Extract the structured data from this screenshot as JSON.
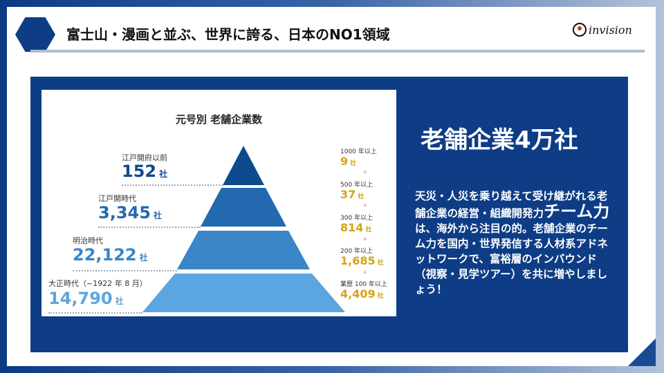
{
  "header": {
    "title": "富士山・漫画と並ぶ、世界に誇る、日本のNO1領域",
    "logo_text": "invision"
  },
  "infographic": {
    "title": "元号別 老舗企業数",
    "unit": "社",
    "tiers": [
      {
        "label": "江戸開府以前",
        "value": "152",
        "color": "#0e4a8c"
      },
      {
        "label": "江戸開時代",
        "value": "3,345",
        "color": "#2369b0"
      },
      {
        "label": "明治時代",
        "value": "22,122",
        "color": "#3a86c8"
      },
      {
        "label": "大正時代（~1922 年 8 月）",
        "value": "14,790",
        "color": "#5ba6e0"
      }
    ],
    "age_groups": [
      {
        "label": "1000 年以上",
        "value": "9"
      },
      {
        "label": "500 年以上",
        "value": "37"
      },
      {
        "label": "300 年以上",
        "value": "814"
      },
      {
        "label": "200 年以上",
        "value": "1,685"
      },
      {
        "label": "業歴 100 年以上",
        "value": "4,409"
      }
    ]
  },
  "main": {
    "headline": "老舗企業4万社",
    "body_pre": "天災・人災を乗り越えて受け継がれる老舗企業の経営・組織開発力",
    "body_emphasis": "チーム力",
    "body_post": "は、海外から注目の的。老舗企業のチーム力を国内・世界発信する人材系アドネットワークで、富裕層のインバウンド（視察・見学ツアー）を共に増やしましょう！"
  },
  "colors": {
    "brand_blue": "#0e3d86",
    "gold": "#d4a514"
  }
}
